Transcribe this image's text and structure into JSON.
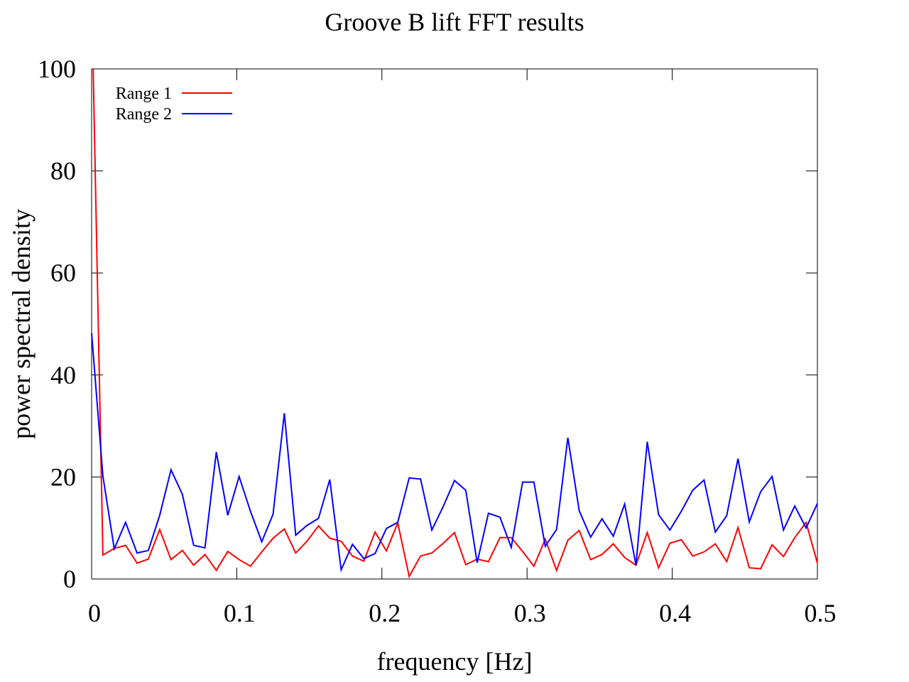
{
  "chart_data": {
    "type": "line",
    "title": "Groove B lift FFT results",
    "xlabel": "frequency [Hz]",
    "ylabel": "power spectral density",
    "xlim": [
      0,
      0.5
    ],
    "ylim": [
      0,
      100
    ],
    "xticks": [
      0,
      0.1,
      0.2,
      0.3,
      0.4,
      0.5
    ],
    "xtick_labels": [
      "0",
      "0.1",
      "0.2",
      "0.3",
      "0.4",
      "0.5"
    ],
    "yticks": [
      0,
      20,
      40,
      60,
      80,
      100
    ],
    "ytick_labels": [
      "0",
      "20",
      "40",
      "60",
      "80",
      "100"
    ],
    "grid": false,
    "legend_position": "top-left",
    "series": [
      {
        "name": "Range 1",
        "color": "#ff0000",
        "x": [
          0.0011,
          0.0078,
          0.0156,
          0.0234,
          0.0313,
          0.0391,
          0.0469,
          0.0547,
          0.0625,
          0.0703,
          0.0781,
          0.0859,
          0.0938,
          0.1016,
          0.1094,
          0.1172,
          0.125,
          0.1328,
          0.1406,
          0.1484,
          0.1563,
          0.1641,
          0.1719,
          0.1797,
          0.1875,
          0.1953,
          0.2031,
          0.2109,
          0.2188,
          0.2266,
          0.2344,
          0.2422,
          0.25,
          0.2578,
          0.2656,
          0.2734,
          0.2813,
          0.2891,
          0.2969,
          0.3047,
          0.3125,
          0.3203,
          0.3281,
          0.3359,
          0.3438,
          0.3516,
          0.3594,
          0.3672,
          0.375,
          0.3828,
          0.3906,
          0.3984,
          0.4063,
          0.4141,
          0.4219,
          0.4297,
          0.4375,
          0.4453,
          0.4531,
          0.4609,
          0.4688,
          0.4766,
          0.4844,
          0.4922,
          0.5
        ],
        "values": [
          100,
          4.7,
          6,
          6.6,
          3.1,
          3.9,
          9.7,
          3.8,
          5.6,
          2.7,
          4.8,
          1.7,
          5.4,
          3.8,
          2.5,
          5.3,
          8,
          9.8,
          5.1,
          7.4,
          10.4,
          8,
          7.4,
          4.5,
          3.5,
          9.2,
          5.5,
          11,
          0.5,
          4.5,
          5.1,
          7,
          9.1,
          2.8,
          3.9,
          3.4,
          8.1,
          8.1,
          5.4,
          2.5,
          7.8,
          1.7,
          7.6,
          9.5,
          3.8,
          4.8,
          6.9,
          4.2,
          2.7,
          9.1,
          2.2,
          7,
          7.7,
          4.5,
          5.3,
          6.9,
          3.4,
          10.1,
          2.2,
          2.0,
          6.7,
          4.4,
          8.1,
          11.1,
          3.1
        ]
      },
      {
        "name": "Range 2",
        "color": "#0000ff",
        "x": [
          0,
          0.0078,
          0.0156,
          0.0234,
          0.0313,
          0.0391,
          0.0469,
          0.0547,
          0.0625,
          0.0703,
          0.0781,
          0.0859,
          0.0938,
          0.1016,
          0.1094,
          0.1172,
          0.125,
          0.1328,
          0.1406,
          0.1484,
          0.1563,
          0.1641,
          0.1719,
          0.1797,
          0.1875,
          0.1953,
          0.2031,
          0.2109,
          0.2188,
          0.2266,
          0.2344,
          0.2422,
          0.25,
          0.2578,
          0.2656,
          0.2734,
          0.2813,
          0.2891,
          0.2969,
          0.3047,
          0.3125,
          0.3203,
          0.3281,
          0.3359,
          0.3438,
          0.3516,
          0.3594,
          0.3672,
          0.375,
          0.3828,
          0.3906,
          0.3984,
          0.4063,
          0.4141,
          0.4219,
          0.4297,
          0.4375,
          0.4453,
          0.4531,
          0.4609,
          0.4688,
          0.4766,
          0.4844,
          0.4922,
          0.5
        ],
        "values": [
          48.2,
          20.2,
          5.9,
          11.1,
          5.1,
          5.6,
          12.5,
          21.4,
          16.6,
          6.6,
          6.1,
          24.9,
          12.5,
          20.1,
          13.3,
          7.3,
          12.7,
          32.5,
          8.6,
          10.5,
          11.9,
          19.5,
          1.8,
          6.8,
          4,
          5,
          9.9,
          11.1,
          19.8,
          19.6,
          9.6,
          14.2,
          19.3,
          17.4,
          3.2,
          12.9,
          12.1,
          6.2,
          19,
          19,
          6.4,
          9.7,
          27.7,
          13.4,
          8.2,
          11.8,
          8.4,
          14.7,
          2.7,
          26.9,
          12.6,
          9.6,
          13.3,
          17.4,
          19.4,
          9.2,
          12.4,
          23.6,
          11.2,
          17.1,
          20.1,
          9.6,
          14.3,
          10,
          14.8
        ]
      }
    ]
  }
}
